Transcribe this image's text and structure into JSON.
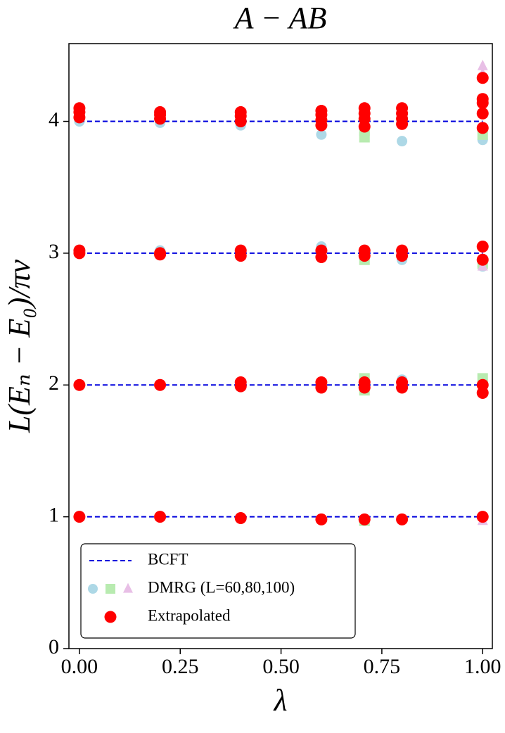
{
  "chart_data": {
    "type": "scatter",
    "title": "A − AB",
    "x_label": "λ",
    "y_label": "L(Eₙ − E₀)/πv",
    "xlim": [
      -0.026,
      1.024
    ],
    "ylim": [
      0,
      4.59
    ],
    "xticks": [
      {
        "value": 0,
        "label": "0.00"
      },
      {
        "value": 0.25,
        "label": "0.25"
      },
      {
        "value": 0.5,
        "label": "0.50"
      },
      {
        "value": 0.75,
        "label": "0.75"
      },
      {
        "value": 1,
        "label": "1.00"
      }
    ],
    "yticks": [
      0,
      1,
      2,
      3,
      4
    ],
    "legend": "lower left",
    "series": [
      {
        "name": "BCFT",
        "color": "#0000dd",
        "kind": "hline",
        "levels": [
          1,
          2,
          3,
          4
        ],
        "x": [
          0,
          1
        ]
      },
      {
        "name": "DMRG (L=60,80,100)",
        "kind": "groups",
        "groups": [
          {
            "color": "#add8e6",
            "marker": "circle",
            "x": [
              0,
              0,
              0,
              0,
              0.2,
              0.2,
              0.2,
              0.2,
              0.4,
              0.4,
              0.4,
              0.4,
              0.6,
              0.6,
              0.6,
              0.6,
              0.8,
              0.8,
              0.8,
              0.8,
              1,
              1,
              1,
              1
            ],
            "values": [
              1.0,
              2.0,
              3.0,
              4.0,
              1.0,
              2.0,
              3.02,
              3.99,
              0.99,
              2.0,
              3.02,
              3.97,
              0.98,
              2.02,
              3.05,
              3.9,
              0.98,
              2.04,
              2.95,
              3.85,
              1.0,
              2.03,
              2.9,
              3.86
            ]
          },
          {
            "color": "#b8ebb0",
            "marker": "square",
            "x": [
              0.707,
              0.707,
              0.707,
              0.707,
              0.707,
              0.707,
              1,
              1,
              1
            ],
            "values": [
              0.97,
              1.96,
              2.05,
              2.95,
              3.88,
              3.93,
              2.05,
              2.92,
              3.9
            ]
          },
          {
            "color": "#e8bfe6",
            "marker": "triangle",
            "x": [
              1,
              1,
              1,
              1,
              0.707
            ],
            "values": [
              0.97,
              2.9,
              4.42,
              4.36,
              4.1
            ]
          }
        ]
      },
      {
        "name": "Extrapolated",
        "color": "#ff0000",
        "kind": "points",
        "x": [
          0,
          0,
          0,
          0,
          0,
          0,
          0,
          0.2,
          0.2,
          0.2,
          0.2,
          0.2,
          0.2,
          0.2,
          0.4,
          0.4,
          0.4,
          0.4,
          0.4,
          0.4,
          0.4,
          0.4,
          0.6,
          0.6,
          0.6,
          0.6,
          0.6,
          0.6,
          0.6,
          0.6,
          0.6,
          0.707,
          0.707,
          0.707,
          0.707,
          0.707,
          0.707,
          0.707,
          0.707,
          0.707,
          0.8,
          0.8,
          0.8,
          0.8,
          0.8,
          0.8,
          0.8,
          0.8,
          0.8,
          1,
          1,
          1,
          1,
          1,
          1,
          1,
          1,
          1,
          1
        ],
        "values": [
          1.0,
          2.0,
          3.0,
          3.02,
          4.03,
          4.07,
          4.1,
          1.0,
          2.0,
          3.0,
          2.99,
          4.02,
          4.05,
          4.07,
          0.99,
          1.99,
          2.02,
          2.98,
          3.02,
          4.0,
          4.04,
          4.07,
          0.98,
          1.98,
          2.02,
          2.97,
          3.02,
          3.97,
          4.01,
          4.05,
          4.08,
          0.98,
          1.98,
          2.02,
          2.98,
          3.02,
          3.96,
          4.02,
          4.06,
          4.1,
          0.98,
          1.98,
          2.02,
          2.98,
          3.02,
          3.98,
          4.02,
          4.06,
          4.1,
          1.0,
          1.94,
          2.0,
          2.95,
          3.05,
          3.95,
          4.06,
          4.14,
          4.17,
          4.33
        ]
      }
    ]
  }
}
